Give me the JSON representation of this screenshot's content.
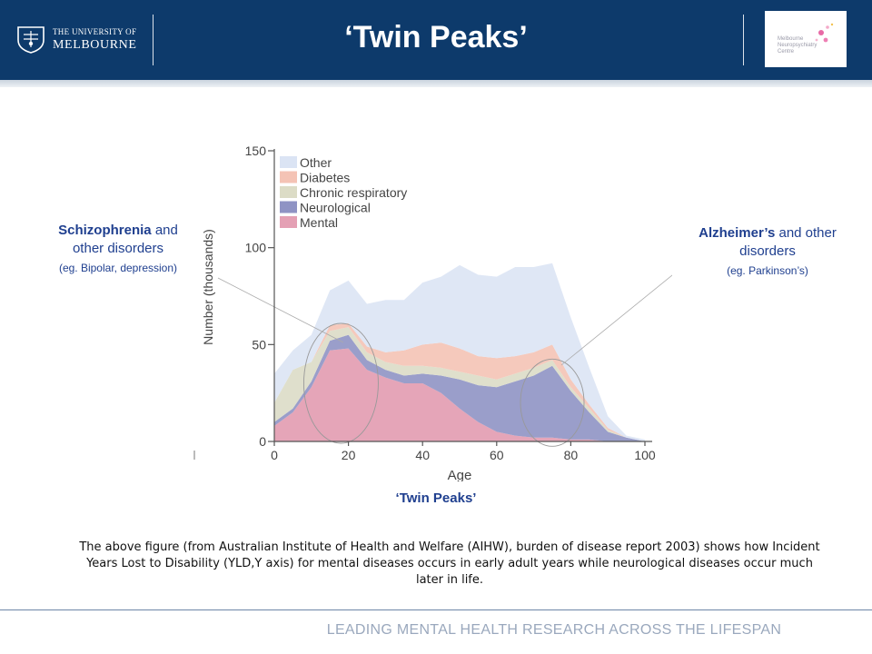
{
  "header": {
    "university_small": "THE UNIVERSITY OF",
    "university_big": "MELBOURNE",
    "title": "‘Twin Peaks’",
    "partner_logo_text": "Melbourne\nNeuropsychiatry\nCentre",
    "background_color": "#0d3a6b"
  },
  "chart_data": {
    "type": "area",
    "stacked": true,
    "x": [
      0,
      5,
      10,
      15,
      20,
      25,
      30,
      35,
      40,
      45,
      50,
      55,
      60,
      65,
      70,
      75,
      80,
      85,
      90,
      95,
      100
    ],
    "series": [
      {
        "name": "Mental",
        "color": "#e4a0b4",
        "values": [
          8,
          15,
          28,
          47,
          48,
          37,
          33,
          30,
          30,
          25,
          17,
          10,
          5,
          3,
          2,
          2,
          1,
          1,
          0,
          0,
          0
        ]
      },
      {
        "name": "Neurological",
        "color": "#8f93c4",
        "values": [
          2,
          2,
          3,
          5,
          7,
          5,
          4,
          4,
          5,
          9,
          15,
          19,
          23,
          28,
          32,
          37,
          25,
          14,
          5,
          2,
          0
        ]
      },
      {
        "name": "Chronic respiratory",
        "color": "#dcdcc6",
        "values": [
          10,
          20,
          10,
          5,
          4,
          4,
          4,
          5,
          4,
          4,
          4,
          5,
          4,
          4,
          4,
          3,
          2,
          2,
          1,
          0,
          0
        ]
      },
      {
        "name": "Diabetes",
        "color": "#f4c3b5",
        "values": [
          0,
          0,
          0,
          3,
          2,
          3,
          5,
          8,
          11,
          13,
          12,
          10,
          11,
          9,
          8,
          8,
          4,
          2,
          1,
          0,
          0
        ]
      },
      {
        "name": "Other",
        "color": "#dbe4f4",
        "values": [
          15,
          10,
          14,
          18,
          22,
          22,
          27,
          26,
          32,
          34,
          43,
          42,
          42,
          46,
          44,
          42,
          32,
          19,
          6,
          1,
          1
        ]
      }
    ],
    "xlabel": "Age",
    "ylabel": "Number (thousands)",
    "xlim": [
      0,
      100
    ],
    "ylim": [
      0,
      150
    ],
    "xticks": [
      0,
      20,
      40,
      60,
      80,
      100
    ],
    "yticks": [
      0,
      50,
      100,
      150
    ],
    "legend": [
      "Other",
      "Diabetes",
      "Chronic respiratory",
      "Neurological",
      "Mental"
    ],
    "legend_position": "top-left",
    "grid": false,
    "annotations": [
      {
        "type": "ellipse",
        "label": "schizophrenia-peak",
        "x": 18,
        "y": 30
      },
      {
        "type": "ellipse",
        "label": "alzheimers-peak",
        "x": 75,
        "y": 20
      }
    ]
  },
  "annotations": {
    "left_strong": "Schizophrenia",
    "left_rest": " and",
    "left_line2": "other disorders",
    "left_sub": "(eg. Bipolar, depression)",
    "right_strong": "Alzheimer’s",
    "right_rest": " and other",
    "right_line2": "disorders",
    "right_sub": "(eg. Parkinson’s)",
    "twin_peaks": "‘Twin Peaks’"
  },
  "caption": "The above figure (from Australian Institute of Health and Welfare (AIHW), burden of disease report 2003) shows how Incident Years Lost to Disability (YLD,Y axis) for mental diseases occurs in early adult years while neurological diseases occur much later in life.",
  "footer": "LEADING MENTAL HEALTH RESEARCH ACROSS THE LIFESPAN"
}
